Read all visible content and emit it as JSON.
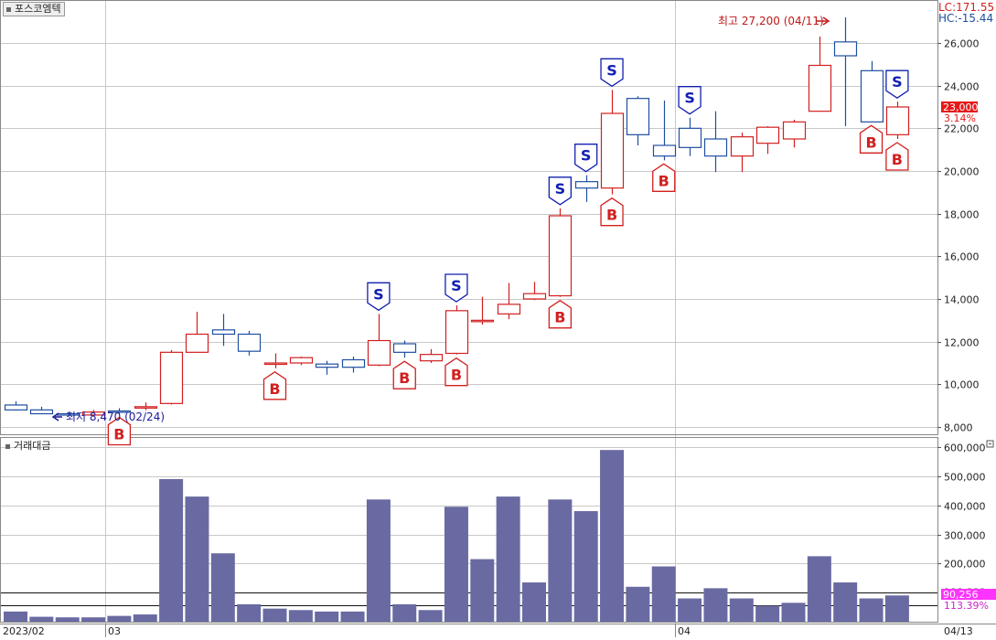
{
  "title": "포스코엠텍",
  "indicators": {
    "lc": "LC:171.55",
    "hc": "HC:-15.44"
  },
  "volume_panel_title": "거래대금",
  "colors": {
    "up": "#d21f1f",
    "down": "#1f4fa0",
    "bar": "#6a6aa2",
    "grid": "#c8c8c8",
    "signal_s": "#1020b0",
    "signal_b": "#d21f1f",
    "current_bg": "#e41a1a",
    "volume_badge_bg": "#ff33ff"
  },
  "annotations": {
    "high_label": "최고 27,200 (04/11)",
    "low_label": "최저 8,470 (02/24)",
    "current_price": "23,000",
    "current_change": "3.14%",
    "volume_value": "90,256",
    "volume_pct": "113.39%",
    "partial_tick": "100,000"
  },
  "x_labels": [
    "2023/02",
    "03",
    "04",
    "04/13"
  ],
  "chart_data": [
    {
      "type": "candlestick",
      "title": "포스코엠텍",
      "ylim": [
        8000,
        27500
      ],
      "yticks": [
        "8,000",
        "10,000",
        "12,000",
        "14,000",
        "16,000",
        "18,000",
        "20,000",
        "22,000",
        "24,000",
        "26,000"
      ],
      "ytick_values": [
        8000,
        10000,
        12000,
        14000,
        16000,
        18000,
        20000,
        22000,
        24000,
        26000
      ],
      "candles": [
        {
          "o": 9030,
          "h": 9200,
          "l": 8760,
          "c": 8800
        },
        {
          "o": 8800,
          "h": 8950,
          "l": 8600,
          "c": 8620
        },
        {
          "o": 8620,
          "h": 8700,
          "l": 8470,
          "c": 8560
        },
        {
          "o": 8560,
          "h": 8800,
          "l": 8500,
          "c": 8700
        },
        {
          "o": 8750,
          "h": 8880,
          "l": 8620,
          "c": 8740
        },
        {
          "o": 8900,
          "h": 9150,
          "l": 8780,
          "c": 8950
        },
        {
          "o": 9100,
          "h": 11600,
          "l": 9050,
          "c": 11500
        },
        {
          "o": 11500,
          "h": 13400,
          "l": 11500,
          "c": 12350
        },
        {
          "o": 12550,
          "h": 13300,
          "l": 11800,
          "c": 12350
        },
        {
          "o": 12350,
          "h": 12500,
          "l": 11350,
          "c": 11550
        },
        {
          "o": 10950,
          "h": 11450,
          "l": 10750,
          "c": 11000
        },
        {
          "o": 11000,
          "h": 11300,
          "l": 10900,
          "c": 11250
        },
        {
          "o": 10950,
          "h": 11100,
          "l": 10450,
          "c": 10800
        },
        {
          "o": 11150,
          "h": 11300,
          "l": 10550,
          "c": 10800
        },
        {
          "o": 10900,
          "h": 13300,
          "l": 10850,
          "c": 12050
        },
        {
          "o": 11900,
          "h": 12050,
          "l": 11250,
          "c": 11500
        },
        {
          "o": 11100,
          "h": 11650,
          "l": 11000,
          "c": 11400
        },
        {
          "o": 11450,
          "h": 13700,
          "l": 11400,
          "c": 13450
        },
        {
          "o": 12950,
          "h": 14100,
          "l": 12800,
          "c": 13000
        },
        {
          "o": 13300,
          "h": 14750,
          "l": 13050,
          "c": 13750
        },
        {
          "o": 14000,
          "h": 14800,
          "l": 13950,
          "c": 14250
        },
        {
          "o": 14150,
          "h": 18250,
          "l": 14100,
          "c": 17900
        },
        {
          "o": 19500,
          "h": 19800,
          "l": 18550,
          "c": 19200
        },
        {
          "o": 19200,
          "h": 23800,
          "l": 18900,
          "c": 22700
        },
        {
          "o": 23400,
          "h": 23500,
          "l": 21200,
          "c": 21700
        },
        {
          "o": 21200,
          "h": 23300,
          "l": 20500,
          "c": 20700
        },
        {
          "o": 22000,
          "h": 22500,
          "l": 20700,
          "c": 21100
        },
        {
          "o": 21500,
          "h": 22800,
          "l": 19950,
          "c": 20700
        },
        {
          "o": 20700,
          "h": 21800,
          "l": 19950,
          "c": 21600
        },
        {
          "o": 21300,
          "h": 22100,
          "l": 20800,
          "c": 22050
        },
        {
          "o": 21500,
          "h": 22400,
          "l": 21100,
          "c": 22300
        },
        {
          "o": 22800,
          "h": 26300,
          "l": 22800,
          "c": 24950
        },
        {
          "o": 26050,
          "h": 27200,
          "l": 22100,
          "c": 25400
        },
        {
          "o": 24700,
          "h": 25150,
          "l": 22300,
          "c": 22300
        },
        {
          "o": 21700,
          "h": 23250,
          "l": 21500,
          "c": 23000
        }
      ],
      "signals": [
        {
          "i": 4,
          "t": "B"
        },
        {
          "i": 10,
          "t": "B"
        },
        {
          "i": 14,
          "t": "S"
        },
        {
          "i": 15,
          "t": "B"
        },
        {
          "i": 17,
          "t": "S"
        },
        {
          "i": 17,
          "t": "B"
        },
        {
          "i": 21,
          "t": "S"
        },
        {
          "i": 21,
          "t": "B"
        },
        {
          "i": 22,
          "t": "S"
        },
        {
          "i": 23,
          "t": "S"
        },
        {
          "i": 23,
          "t": "B"
        },
        {
          "i": 25,
          "t": "B"
        },
        {
          "i": 26,
          "t": "S"
        },
        {
          "i": 33,
          "t": "B"
        },
        {
          "i": 34,
          "t": "S"
        },
        {
          "i": 34,
          "t": "B"
        }
      ]
    },
    {
      "type": "bar",
      "title": "거래대금",
      "ylim": [
        0,
        610000
      ],
      "yticks": [
        "200,000",
        "300,000",
        "400,000",
        "500,000",
        "600,000"
      ],
      "ytick_values": [
        200000,
        300000,
        400000,
        500000,
        600000
      ],
      "values": [
        35000,
        17000,
        15000,
        15000,
        20000,
        25000,
        490000,
        430000,
        235000,
        60000,
        45000,
        40000,
        35000,
        35000,
        420000,
        60000,
        40000,
        395000,
        215000,
        430000,
        135000,
        420000,
        380000,
        590000,
        120000,
        190000,
        80000,
        115000,
        80000,
        55000,
        65000,
        225000,
        135000,
        80000,
        90256
      ],
      "hlines": [
        100000,
        55000
      ]
    }
  ]
}
